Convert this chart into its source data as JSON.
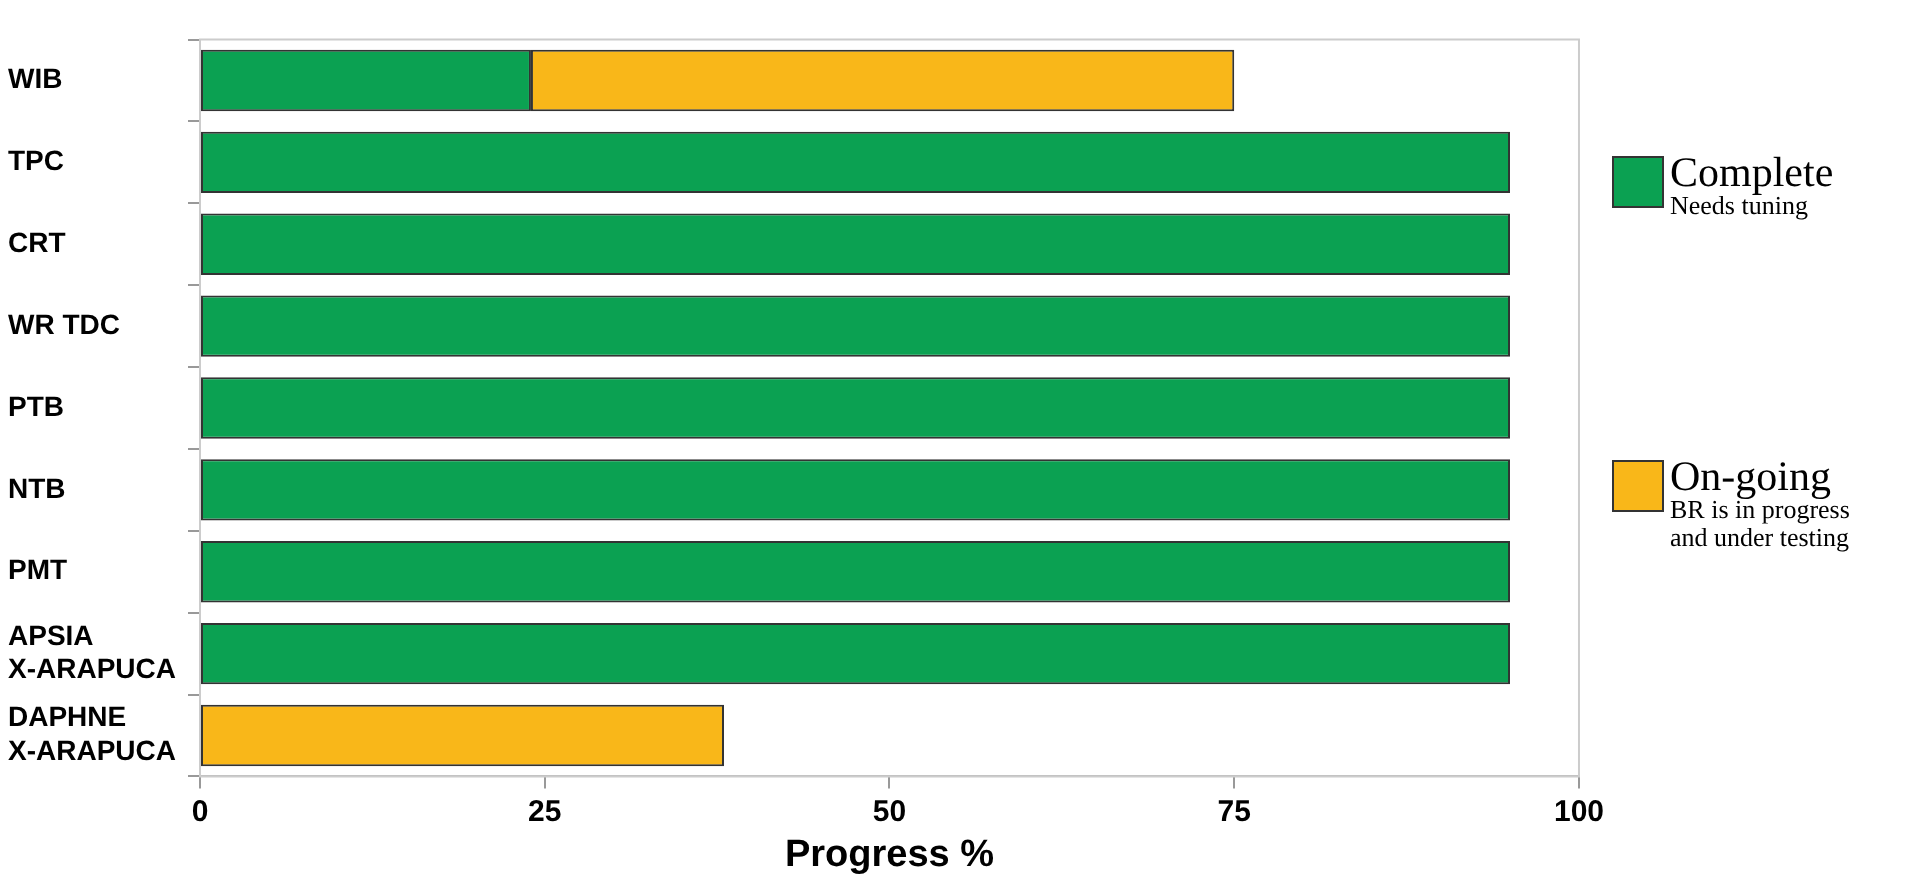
{
  "chart_data": {
    "type": "bar",
    "orientation": "horizontal",
    "stacked": true,
    "xlabel": "Progress %",
    "categories": [
      "WIB",
      "TPC",
      "CRT",
      "WR TDC",
      "PTB",
      "NTB",
      "PMT",
      "APSIA\nX-ARAPUCA",
      "DAPHNE\nX-ARAPUCA"
    ],
    "series": [
      {
        "name": "Complete",
        "color": "#0ba152",
        "values": [
          24,
          95,
          95,
          95,
          95,
          95,
          95,
          95,
          null
        ]
      },
      {
        "name": "On-going",
        "color": "#f9b719",
        "values": [
          51,
          null,
          null,
          null,
          null,
          null,
          null,
          null,
          38
        ]
      }
    ],
    "xlim": [
      0,
      100
    ],
    "xticks": [
      0,
      25,
      50,
      75,
      100
    ],
    "grid": false,
    "legend": "right",
    "annotations": [
      "Needs tuning",
      "BR is in progress\nand under testing"
    ]
  }
}
